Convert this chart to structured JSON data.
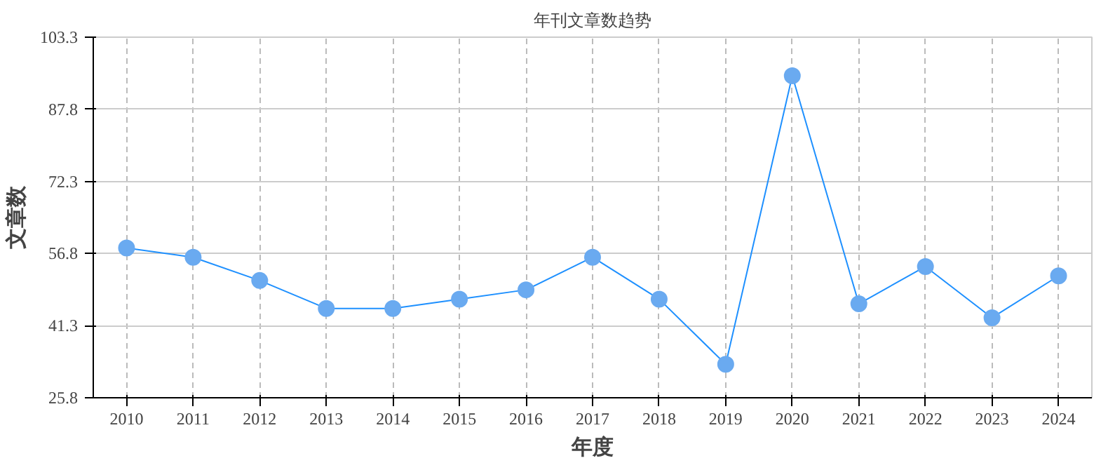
{
  "chart_data": {
    "type": "line",
    "title": "年刊文章数趋势",
    "xlabel": "年度",
    "ylabel": "文章数",
    "categories": [
      "2010",
      "2011",
      "2012",
      "2013",
      "2014",
      "2015",
      "2016",
      "2017",
      "2018",
      "2019",
      "2020",
      "2021",
      "2022",
      "2023",
      "2024"
    ],
    "series": [
      {
        "color": "#1e90ff",
        "values": [
          58,
          56,
          51,
          45,
          45,
          47,
          49,
          56,
          47,
          33,
          95,
          46,
          54,
          43,
          52
        ]
      }
    ],
    "ylim": [
      25.8,
      103.3
    ],
    "yticks": [
      25.8,
      41.3,
      56.8,
      72.3,
      87.8,
      103.3
    ],
    "grid": true,
    "marker": "circle",
    "line_style": "solid"
  }
}
